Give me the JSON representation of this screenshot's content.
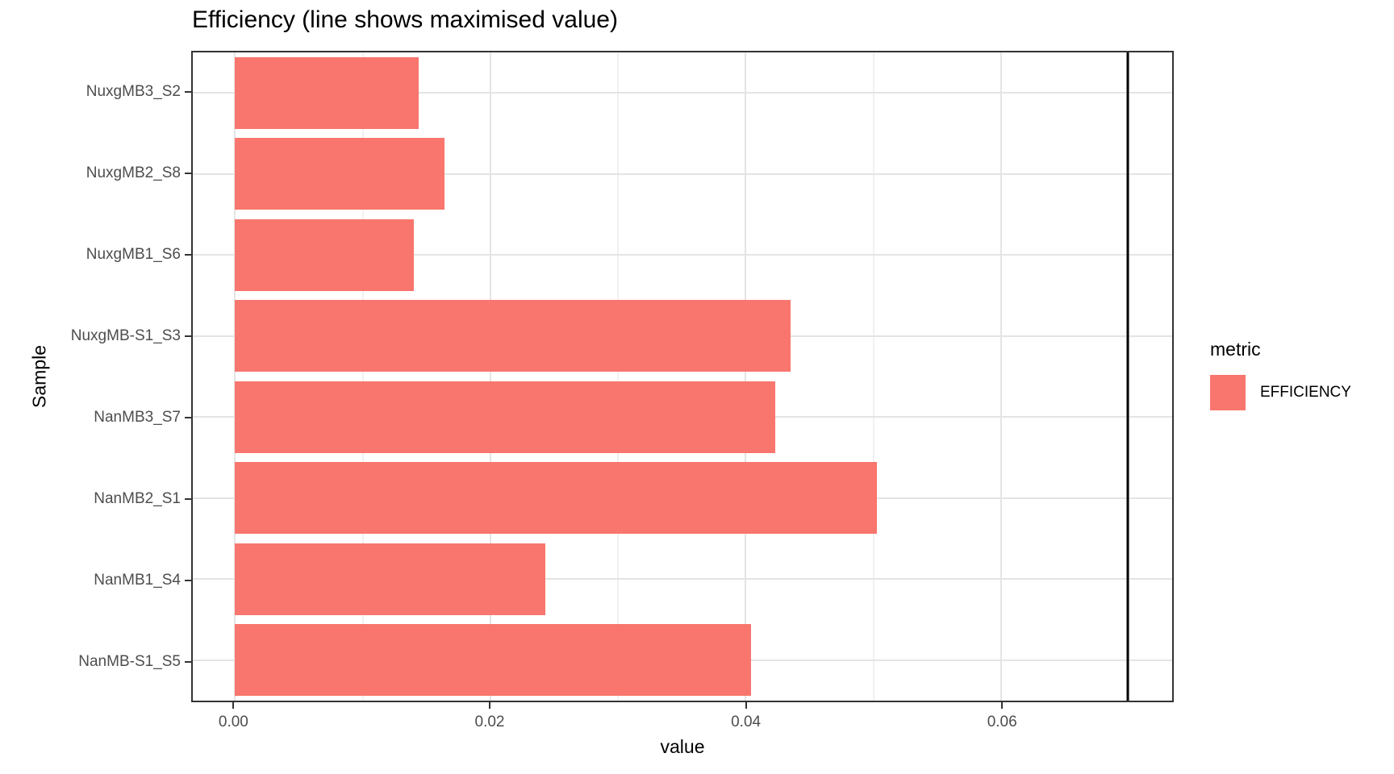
{
  "title": "Efficiency (line shows maximised value)",
  "colors": {
    "bar": "#F8766D",
    "vline": "#000000",
    "axis_text": "#4d4d4d",
    "panel_border": "#333333",
    "grid_major": "#e4e4e4",
    "grid_minor": "#f1f1f1"
  },
  "legend": {
    "title": "metric",
    "items": [
      {
        "label": "EFFICIENCY",
        "color": "#F8766D"
      }
    ]
  },
  "chart_data": {
    "type": "bar",
    "orientation": "horizontal",
    "title": "Efficiency (line shows maximised value)",
    "xlabel": "value",
    "ylabel": "Sample",
    "series_name": "EFFICIENCY",
    "categories": [
      "NuxgMB3_S2",
      "NuxgMB2_S8",
      "NuxgMB1_S6",
      "NuxgMB-S1_S3",
      "NanMB3_S7",
      "NanMB2_S1",
      "NanMB1_S4",
      "NanMB-S1_S5"
    ],
    "values": [
      0.0144,
      0.0164,
      0.014,
      0.0435,
      0.0423,
      0.0503,
      0.0243,
      0.0404
    ],
    "vline": 0.0699,
    "xlim": [
      -0.0033,
      0.0734
    ],
    "x_major_ticks": [
      0,
      0.02,
      0.04,
      0.06
    ],
    "x_tick_labels": [
      "0.00",
      "0.02",
      "0.04",
      "0.06"
    ],
    "x_minor_ticks": [
      0.01,
      0.03,
      0.05,
      0.07
    ],
    "grid": true,
    "legend_position": "right"
  }
}
